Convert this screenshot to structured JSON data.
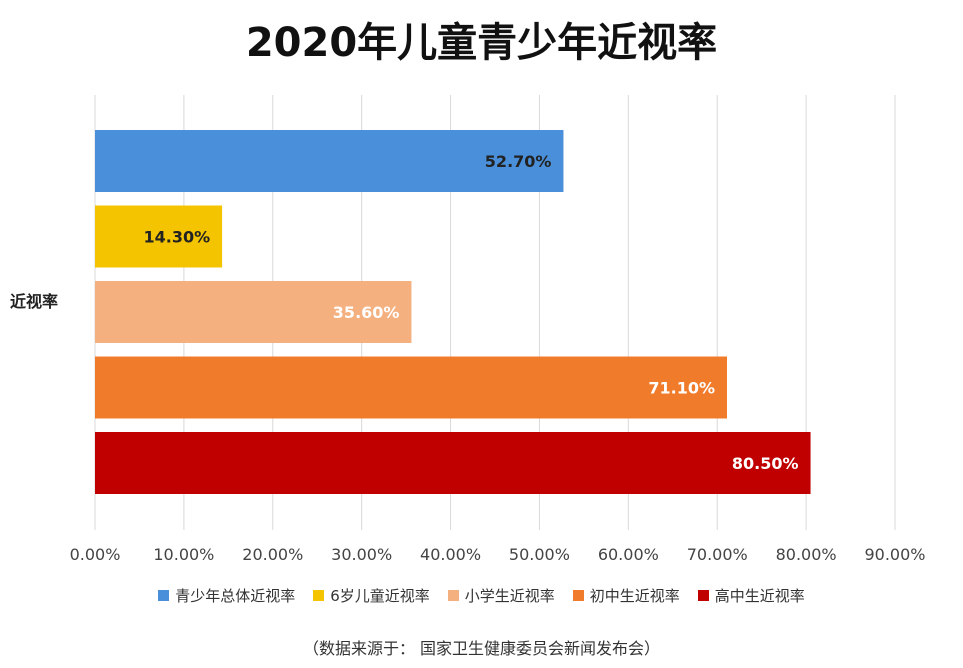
{
  "chart_data": {
    "type": "bar",
    "orientation": "horizontal",
    "title": "2020年儿童青少年近视率",
    "categories": [
      "近视率"
    ],
    "series": [
      {
        "name": "青少年总体近视率",
        "values": [
          52.7
        ],
        "label": "52.70%",
        "color": "#4a8fd9"
      },
      {
        "name": "6岁儿童近视率",
        "values": [
          14.3
        ],
        "label": "14.30%",
        "color": "#f5c400"
      },
      {
        "name": "小学生近视率",
        "values": [
          35.6
        ],
        "label": "35.60%",
        "color": "#f5b07f"
      },
      {
        "name": "初中生近视率",
        "values": [
          71.1
        ],
        "label": "71.10%",
        "color": "#f07c2b"
      },
      {
        "name": "高中生近视率",
        "values": [
          80.5
        ],
        "label": "80.50%",
        "color": "#c00000"
      }
    ],
    "xlim": [
      0,
      90
    ],
    "xticks": [
      0,
      10,
      20,
      30,
      40,
      50,
      60,
      70,
      80,
      90
    ],
    "xtick_labels": [
      "0.00%",
      "10.00%",
      "20.00%",
      "30.00%",
      "40.00%",
      "50.00%",
      "60.00%",
      "70.00%",
      "80.00%",
      "90.00%"
    ],
    "grid": "vertical",
    "legend_position": "bottom"
  },
  "source_note": "（数据来源于：  国家卫生健康委员会新闻发布会）"
}
